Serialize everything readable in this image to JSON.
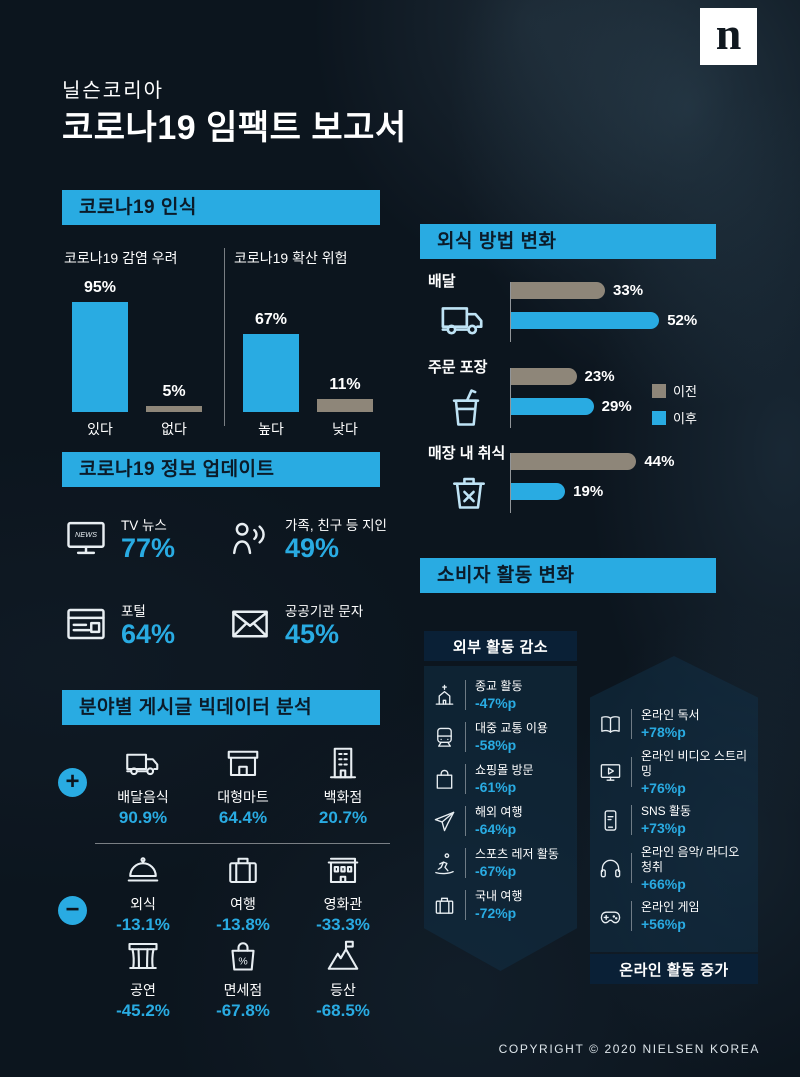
{
  "colors": {
    "accent": "#29ABE2",
    "before_gray": "#8E8679",
    "background": "#0C151E",
    "panel_navy": "#0A2036"
  },
  "header": {
    "logo_letter": "n",
    "brand": "닐슨코리아",
    "title": "코로나19 임팩트 보고서"
  },
  "footer": {
    "copyright": "COPYRIGHT © 2020 NIELSEN KOREA"
  },
  "chart_data": [
    {
      "type": "bar",
      "title": "코로나19 감염 우려",
      "categories": [
        "있다",
        "없다"
      ],
      "values": [
        95,
        5
      ],
      "unit": "%",
      "ylim": [
        0,
        100
      ]
    },
    {
      "type": "bar",
      "title": "코로나19 확산 위험",
      "categories": [
        "높다",
        "낮다"
      ],
      "values": [
        67,
        11
      ],
      "unit": "%",
      "ylim": [
        0,
        100
      ]
    },
    {
      "type": "bar",
      "orientation": "horizontal",
      "title": "외식 방법 변화",
      "categories": [
        "배달",
        "주문 포장",
        "매장 내 취식"
      ],
      "series": [
        {
          "name": "이전",
          "values": [
            33,
            23,
            44
          ]
        },
        {
          "name": "이후",
          "values": [
            52,
            29,
            19
          ]
        }
      ],
      "unit": "%",
      "legend_position": "right"
    }
  ],
  "perception": {
    "header": "코로나19 인식",
    "charts": [
      {
        "title": "코로나19 감염 우려",
        "bars": [
          {
            "label": "있다",
            "value": "95%"
          },
          {
            "label": "없다",
            "value": "5%"
          }
        ]
      },
      {
        "title": "코로나19 확산 위험",
        "bars": [
          {
            "label": "높다",
            "value": "67%"
          },
          {
            "label": "낮다",
            "value": "11%"
          }
        ]
      }
    ]
  },
  "info_update": {
    "header": "코로나19 정보 업데이트",
    "items": [
      {
        "icon": "tv-news-icon",
        "label": "TV 뉴스",
        "value": "77%"
      },
      {
        "icon": "person-talking-icon",
        "label": "가족, 친구 등 지인",
        "value": "49%"
      },
      {
        "icon": "browser-icon",
        "label": "포털",
        "value": "64%"
      },
      {
        "icon": "envelope-icon",
        "label": "공공기관 문자",
        "value": "45%"
      }
    ]
  },
  "dining": {
    "header": "외식 방법 변화",
    "legend": [
      {
        "label": "이전",
        "color": "#8E8679"
      },
      {
        "label": "이후",
        "color": "#29ABE2"
      }
    ],
    "groups": [
      {
        "label": "배달",
        "icon": "delivery-truck-icon",
        "before": "33%",
        "after": "52%"
      },
      {
        "label": "주문 포장",
        "icon": "takeout-cup-icon",
        "before": "23%",
        "after": "29%"
      },
      {
        "label": "매장 내 취식",
        "icon": "dine-in-icon",
        "before": "44%",
        "after": "19%"
      }
    ]
  },
  "bigdata": {
    "header": "분야별 게시글 빅데이터 분석",
    "positive_sign": "+",
    "negative_sign": "−",
    "positive": [
      {
        "icon": "delivery-truck-icon",
        "label": "배달음식",
        "value": "90.9%"
      },
      {
        "icon": "mart-icon",
        "label": "대형마트",
        "value": "64.4%"
      },
      {
        "icon": "department-store-icon",
        "label": "백화점",
        "value": "20.7%"
      }
    ],
    "negative": [
      {
        "icon": "cloche-icon",
        "label": "외식",
        "value": "-13.1%"
      },
      {
        "icon": "suitcase-icon",
        "label": "여행",
        "value": "-13.8%"
      },
      {
        "icon": "cinema-icon",
        "label": "영화관",
        "value": "-33.3%"
      },
      {
        "icon": "stage-icon",
        "label": "공연",
        "value": "-45.2%"
      },
      {
        "icon": "duty-free-icon",
        "label": "면세점",
        "value": "-67.8%"
      },
      {
        "icon": "mountain-icon",
        "label": "등산",
        "value": "-68.5%"
      }
    ]
  },
  "consumer": {
    "header": "소비자 활동 변화",
    "decrease_title": "외부 활동 감소",
    "decrease": [
      {
        "icon": "church-icon",
        "label": "종교 활동",
        "value": "-47%p"
      },
      {
        "icon": "train-icon",
        "label": "대중 교통 이용",
        "value": "-58%p"
      },
      {
        "icon": "shopping-bag-icon",
        "label": "쇼핑몰 방문",
        "value": "-61%p"
      },
      {
        "icon": "airplane-icon",
        "label": "해외 여행",
        "value": "-64%p"
      },
      {
        "icon": "sports-icon",
        "label": "스포츠 레저 활동",
        "value": "-67%p"
      },
      {
        "icon": "suitcase-icon",
        "label": "국내 여행",
        "value": "-72%p"
      }
    ],
    "increase_title": "온라인 활동 증가",
    "increase": [
      {
        "icon": "book-icon",
        "label": "온라인 독서",
        "value": "+78%p"
      },
      {
        "icon": "video-icon",
        "label": "온라인 비디오 스트리밍",
        "value": "+76%p"
      },
      {
        "icon": "sns-icon",
        "label": "SNS 활동",
        "value": "+73%p"
      },
      {
        "icon": "music-icon",
        "label": "온라인 음악/ 라디오 청취",
        "value": "+66%p"
      },
      {
        "icon": "game-icon",
        "label": "온라인 게임",
        "value": "+56%p"
      }
    ]
  }
}
